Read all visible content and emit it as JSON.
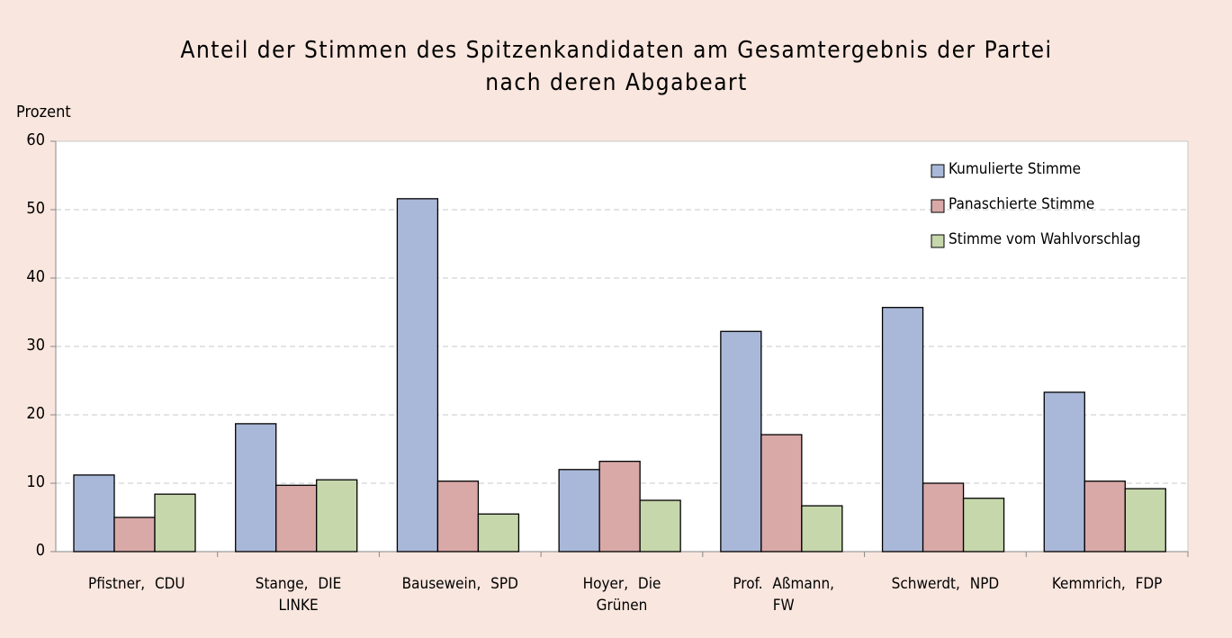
{
  "chart_data": {
    "type": "bar",
    "title": "Anteil der Stimmen des Spitzenkandidaten am Gesamtergebnis der Partei nach deren Abgabeart",
    "y_label": "Prozent",
    "categories": [
      "Pfistner, CDU",
      "Stange, DIE LINKE",
      "Bausewein, SPD",
      "Hoyer, Die Grünen",
      "Prof. Aßmann, FW",
      "Schwerdt, NPD",
      "Kemmrich, FDP"
    ],
    "series": [
      {
        "name": "Kumulierte Stimme",
        "color": "#a9b8d8",
        "values": [
          11.2,
          18.7,
          51.6,
          12,
          32.2,
          35.7,
          23.3
        ]
      },
      {
        "name": "Panaschierte Stimme",
        "color": "#d9a9a8",
        "values": [
          5,
          9.7,
          10.3,
          13.2,
          17.1,
          10,
          10.3
        ]
      },
      {
        "name": "Stimme vom Wahlvorschlag",
        "color": "#c6d7ab",
        "values": [
          8.4,
          10.5,
          5.5,
          7.5,
          6.7,
          7.8,
          9.2
        ]
      }
    ],
    "ylim": [
      0,
      60
    ],
    "yticks": [
      0,
      10,
      20,
      30,
      40,
      50,
      60
    ],
    "grid": true,
    "legend": "top-right"
  }
}
